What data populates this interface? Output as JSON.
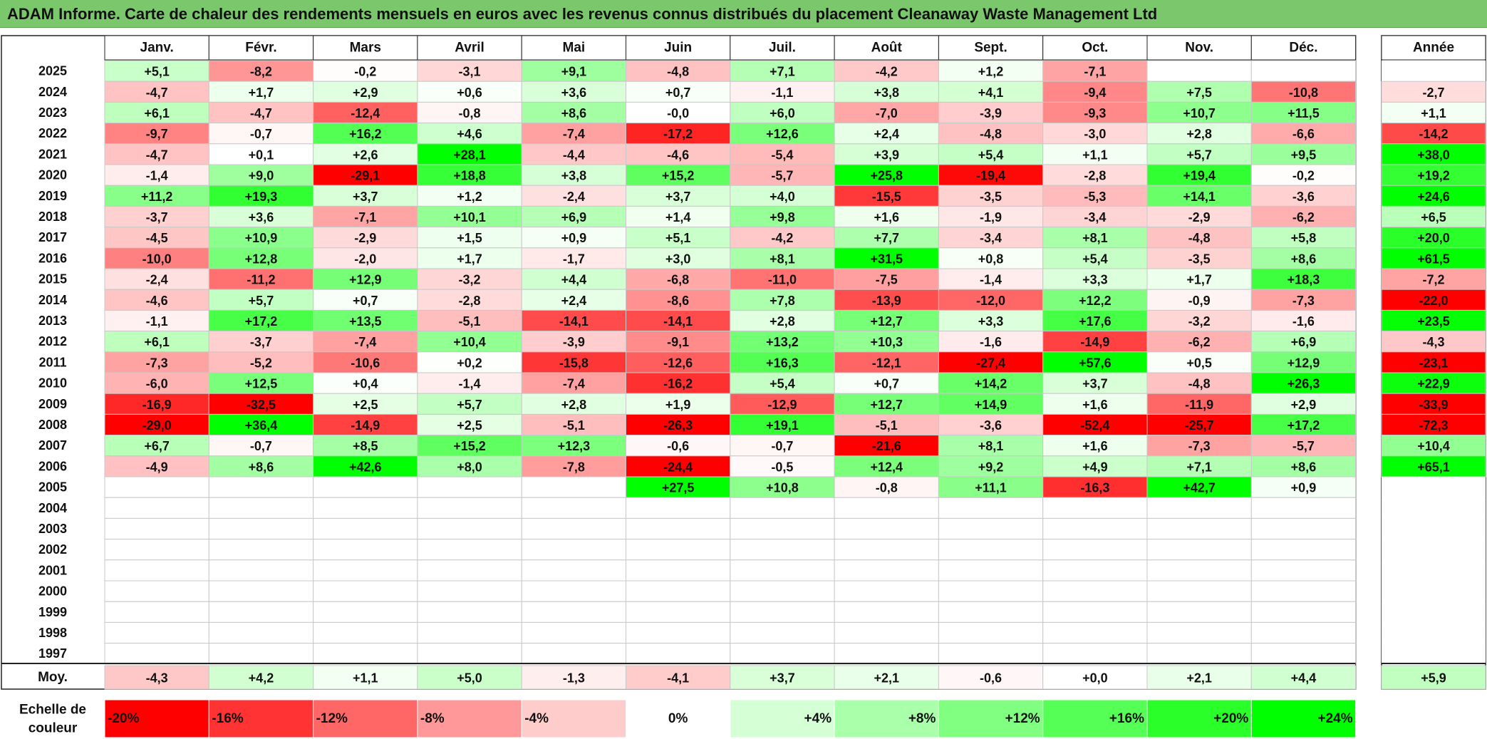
{
  "title": "ADAM Informe. Carte de chaleur des rendements mensuels en euros avec les revenus connus distribués du placement Cleanaway Waste Management Ltd",
  "chart_data": {
    "type": "heatmap",
    "months": [
      "Janv.",
      "Févr.",
      "Mars",
      "Avril",
      "Mai",
      "Juin",
      "Juil.",
      "Août",
      "Sept.",
      "Oct.",
      "Nov.",
      "Déc."
    ],
    "year_header": "Année",
    "rows": [
      {
        "year": "2025",
        "values": [
          "+5,1",
          "-8,2",
          "-0,2",
          "-3,1",
          "+9,1",
          "-4,8",
          "+7,1",
          "-4,2",
          "+1,2",
          "-7,1",
          "",
          ""
        ],
        "annual": ""
      },
      {
        "year": "2024",
        "values": [
          "-4,7",
          "+1,7",
          "+2,9",
          "+0,6",
          "+3,6",
          "+0,7",
          "-1,1",
          "+3,8",
          "+4,1",
          "-9,4",
          "+7,5",
          "-10,8"
        ],
        "annual": "-2,7"
      },
      {
        "year": "2023",
        "values": [
          "+6,1",
          "-4,7",
          "-12,4",
          "-0,8",
          "+8,6",
          "-0,0",
          "+6,0",
          "-7,0",
          "-3,9",
          "-9,3",
          "+10,7",
          "+11,5"
        ],
        "annual": "+1,1"
      },
      {
        "year": "2022",
        "values": [
          "-9,7",
          "-0,7",
          "+16,2",
          "+4,6",
          "-7,4",
          "-17,2",
          "+12,6",
          "+2,4",
          "-4,8",
          "-3,0",
          "+2,8",
          "-6,6"
        ],
        "annual": "-14,2"
      },
      {
        "year": "2021",
        "values": [
          "-4,7",
          "+0,1",
          "+2,6",
          "+28,1",
          "-4,4",
          "-4,6",
          "-5,4",
          "+3,9",
          "+5,4",
          "+1,1",
          "+5,7",
          "+9,5"
        ],
        "annual": "+38,0"
      },
      {
        "year": "2020",
        "values": [
          "-1,4",
          "+9,0",
          "-29,1",
          "+18,8",
          "+3,8",
          "+15,2",
          "-5,7",
          "+25,8",
          "-19,4",
          "-2,8",
          "+19,4",
          "-0,2"
        ],
        "annual": "+19,2"
      },
      {
        "year": "2019",
        "values": [
          "+11,2",
          "+19,3",
          "+3,7",
          "+1,2",
          "-2,4",
          "+3,7",
          "+4,0",
          "-15,5",
          "-3,5",
          "-5,3",
          "+14,1",
          "-3,6"
        ],
        "annual": "+24,6"
      },
      {
        "year": "2018",
        "values": [
          "-3,7",
          "+3,6",
          "-7,1",
          "+10,1",
          "+6,9",
          "+1,4",
          "+9,8",
          "+1,6",
          "-1,9",
          "-3,4",
          "-2,9",
          "-6,2"
        ],
        "annual": "+6,5"
      },
      {
        "year": "2017",
        "values": [
          "-4,5",
          "+10,9",
          "-2,9",
          "+1,5",
          "+0,9",
          "+5,1",
          "-4,2",
          "+7,7",
          "-3,4",
          "+8,1",
          "-4,8",
          "+5,8"
        ],
        "annual": "+20,0"
      },
      {
        "year": "2016",
        "values": [
          "-10,0",
          "+12,8",
          "-2,0",
          "+1,7",
          "-1,7",
          "+3,0",
          "+8,1",
          "+31,5",
          "+0,8",
          "+5,4",
          "-3,5",
          "+8,6"
        ],
        "annual": "+61,5"
      },
      {
        "year": "2015",
        "values": [
          "-2,4",
          "-11,2",
          "+12,9",
          "-3,2",
          "+4,4",
          "-6,8",
          "-11,0",
          "-7,5",
          "-1,4",
          "+3,3",
          "+1,7",
          "+18,3"
        ],
        "annual": "-7,2"
      },
      {
        "year": "2014",
        "values": [
          "-4,6",
          "+5,7",
          "+0,7",
          "-2,8",
          "+2,4",
          "-8,6",
          "+7,8",
          "-13,9",
          "-12,0",
          "+12,2",
          "-0,9",
          "-7,3"
        ],
        "annual": "-22,0"
      },
      {
        "year": "2013",
        "values": [
          "-1,1",
          "+17,2",
          "+13,5",
          "-5,1",
          "-14,1",
          "-14,1",
          "+2,8",
          "+12,7",
          "+3,3",
          "+17,6",
          "-3,2",
          "-1,6"
        ],
        "annual": "+23,5"
      },
      {
        "year": "2012",
        "values": [
          "+6,1",
          "-3,7",
          "-7,4",
          "+10,4",
          "-3,9",
          "-9,1",
          "+13,2",
          "+10,3",
          "-1,6",
          "-14,9",
          "-6,2",
          "+6,9"
        ],
        "annual": "-4,3"
      },
      {
        "year": "2011",
        "values": [
          "-7,3",
          "-5,2",
          "-10,6",
          "+0,2",
          "-15,8",
          "-12,6",
          "+16,3",
          "-12,1",
          "-27,4",
          "+57,6",
          "+0,5",
          "+12,9"
        ],
        "annual": "-23,1"
      },
      {
        "year": "2010",
        "values": [
          "-6,0",
          "+12,5",
          "+0,4",
          "-1,4",
          "-7,4",
          "-16,2",
          "+5,4",
          "+0,7",
          "+14,2",
          "+3,7",
          "-4,8",
          "+26,3"
        ],
        "annual": "+22,9"
      },
      {
        "year": "2009",
        "values": [
          "-16,9",
          "-32,5",
          "+2,5",
          "+5,7",
          "+2,8",
          "+1,9",
          "-12,9",
          "+12,7",
          "+14,9",
          "+1,6",
          "-11,9",
          "+2,9"
        ],
        "annual": "-33,9"
      },
      {
        "year": "2008",
        "values": [
          "-29,0",
          "+36,4",
          "-14,9",
          "+2,5",
          "-5,1",
          "-26,3",
          "+19,1",
          "-5,1",
          "-3,6",
          "-52,4",
          "-25,7",
          "+17,2"
        ],
        "annual": "-72,3"
      },
      {
        "year": "2007",
        "values": [
          "+6,7",
          "-0,7",
          "+8,5",
          "+15,2",
          "+12,3",
          "-0,6",
          "-0,7",
          "-21,6",
          "+8,1",
          "+1,6",
          "-7,3",
          "-5,7"
        ],
        "annual": "+10,4"
      },
      {
        "year": "2006",
        "values": [
          "-4,9",
          "+8,6",
          "+42,6",
          "+8,0",
          "-7,8",
          "-24,4",
          "-0,5",
          "+12,4",
          "+9,2",
          "+4,9",
          "+7,1",
          "+8,6"
        ],
        "annual": "+65,1"
      },
      {
        "year": "2005",
        "values": [
          "",
          "",
          "",
          "",
          "",
          "+27,5",
          "+10,8",
          "-0,8",
          "+11,1",
          "-16,3",
          "+42,7",
          "+0,9"
        ],
        "annual": ""
      },
      {
        "year": "2004",
        "values": [
          "",
          "",
          "",
          "",
          "",
          "",
          "",
          "",
          "",
          "",
          "",
          ""
        ],
        "annual": ""
      },
      {
        "year": "2003",
        "values": [
          "",
          "",
          "",
          "",
          "",
          "",
          "",
          "",
          "",
          "",
          "",
          ""
        ],
        "annual": ""
      },
      {
        "year": "2002",
        "values": [
          "",
          "",
          "",
          "",
          "",
          "",
          "",
          "",
          "",
          "",
          "",
          ""
        ],
        "annual": ""
      },
      {
        "year": "2001",
        "values": [
          "",
          "",
          "",
          "",
          "",
          "",
          "",
          "",
          "",
          "",
          "",
          ""
        ],
        "annual": ""
      },
      {
        "year": "2000",
        "values": [
          "",
          "",
          "",
          "",
          "",
          "",
          "",
          "",
          "",
          "",
          "",
          ""
        ],
        "annual": ""
      },
      {
        "year": "1999",
        "values": [
          "",
          "",
          "",
          "",
          "",
          "",
          "",
          "",
          "",
          "",
          "",
          ""
        ],
        "annual": ""
      },
      {
        "year": "1998",
        "values": [
          "",
          "",
          "",
          "",
          "",
          "",
          "",
          "",
          "",
          "",
          "",
          ""
        ],
        "annual": ""
      },
      {
        "year": "1997",
        "values": [
          "",
          "",
          "",
          "",
          "",
          "",
          "",
          "",
          "",
          "",
          "",
          ""
        ],
        "annual": ""
      }
    ],
    "average": {
      "label": "Moy.",
      "values": [
        "-4,3",
        "+4,2",
        "+1,1",
        "+5,0",
        "-1,3",
        "-4,1",
        "+3,7",
        "+2,1",
        "-0,6",
        "+0,0",
        "+2,1",
        "+4,4"
      ],
      "annual": "+5,9"
    },
    "scale": {
      "label": [
        "Echelle de",
        "couleur"
      ],
      "steps": [
        "-20%",
        "-16%",
        "-12%",
        "-8%",
        "-4%",
        "0%",
        "+4%",
        "+8%",
        "+12%",
        "+16%",
        "+20%",
        "+24%"
      ]
    },
    "colors": {
      "negative_max": "#ff0000",
      "positive_max": "#00ff00",
      "neutral": "#ffffff",
      "title_bar": "#7bc86c"
    }
  }
}
